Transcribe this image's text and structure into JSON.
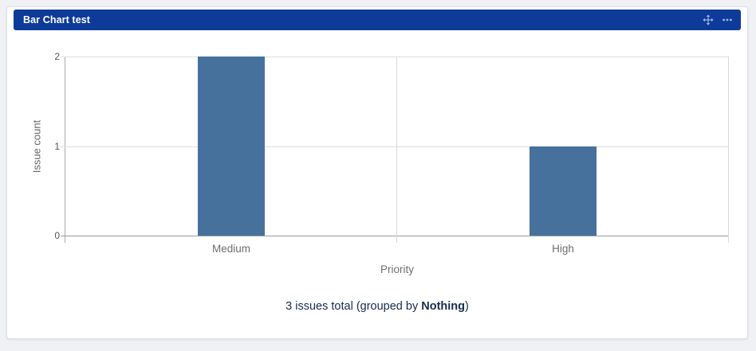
{
  "colors": {
    "page_bg": "#f0f1f4",
    "header_bg": "#0e3b9a",
    "header_text": "#ffffff",
    "header_icon": "#a9b9e6",
    "bar": "#46719c",
    "grid": "#dddddd",
    "axis_line": "#9a9a9a",
    "axis_text": "#6e6e6e",
    "footer_text": "#172b4d"
  },
  "header": {
    "title": "Bar Chart test",
    "icons": [
      {
        "name": "move-icon"
      },
      {
        "name": "more-options-icon"
      }
    ]
  },
  "chart_data": {
    "type": "bar",
    "title": "",
    "categories": [
      "Medium",
      "High"
    ],
    "values": [
      2,
      1
    ],
    "xlabel": "Priority",
    "ylabel": "Issue count",
    "ylim": [
      0,
      2
    ],
    "yticks": [
      0,
      1,
      2
    ],
    "bar_color": "#46719c",
    "bar_width_pct": 10,
    "grid": true,
    "legend": false
  },
  "footer": {
    "prefix": "3 issues total (grouped by ",
    "bold": "Nothing",
    "suffix": ")"
  }
}
